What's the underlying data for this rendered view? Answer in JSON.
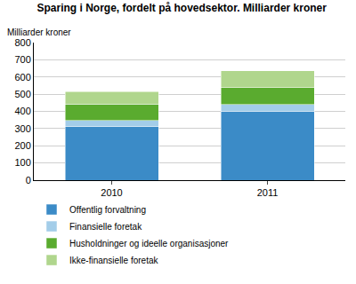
{
  "chart_data": {
    "type": "bar",
    "title": "Sparing i Norge, fordelt på hovedsektor. Milliarder kroner",
    "ylabel": "Milliarder kroner",
    "categories": [
      "2010",
      "2011"
    ],
    "stacked": true,
    "series": [
      {
        "name": "Offentlig forvaltning",
        "color": "#3b8bc7",
        "values": [
          310,
          402
        ]
      },
      {
        "name": "Finansielle foretak",
        "color": "#a3cde9",
        "values": [
          38,
          38
        ]
      },
      {
        "name": "Husholdninger og ideelle organisasjoner",
        "color": "#5aab2f",
        "values": [
          95,
          97
        ]
      },
      {
        "name": "Ikke-finansielle foretak",
        "color": "#b0d68d",
        "values": [
          73,
          99
        ]
      }
    ],
    "ylim": [
      0,
      800
    ],
    "yticks": [
      0,
      100,
      200,
      300,
      400,
      500,
      600,
      700,
      800
    ],
    "grid": true,
    "legend": "bottom"
  }
}
